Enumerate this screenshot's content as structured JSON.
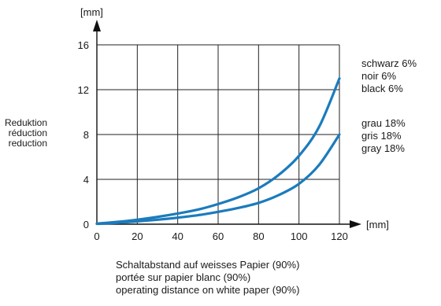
{
  "chart_data": {
    "type": "line",
    "y_unit": "[mm]",
    "x_unit": "[mm]",
    "ylabel": [
      "Reduktion",
      "réduction",
      "reduction"
    ],
    "xlabel": [
      "Schaltabstand auf weisses Papier (90%)",
      "portée sur papier blanc (90%)",
      "operating distance on white paper (90%)"
    ],
    "xlim": [
      0,
      120
    ],
    "ylim": [
      0,
      16
    ],
    "x_ticks": [
      0,
      20,
      40,
      60,
      80,
      100,
      120
    ],
    "y_ticks": [
      0,
      4,
      8,
      12,
      16
    ],
    "grid": true,
    "line_color": "#1b7bbd",
    "series": [
      {
        "label_lines": [
          "schwarz 6%",
          "noir 6%",
          "black 6%"
        ],
        "x": [
          0,
          10,
          20,
          30,
          40,
          50,
          60,
          70,
          80,
          90,
          100,
          110,
          120
        ],
        "y": [
          0.05,
          0.2,
          0.4,
          0.65,
          0.95,
          1.3,
          1.8,
          2.4,
          3.2,
          4.4,
          6.1,
          8.7,
          13.0
        ]
      },
      {
        "label_lines": [
          "grau 18%",
          "gris 18%",
          "gray 18%"
        ],
        "x": [
          0,
          10,
          20,
          30,
          40,
          50,
          60,
          70,
          80,
          90,
          100,
          110,
          120
        ],
        "y": [
          0.03,
          0.12,
          0.25,
          0.4,
          0.58,
          0.8,
          1.1,
          1.45,
          1.9,
          2.6,
          3.6,
          5.3,
          8.0
        ]
      }
    ]
  }
}
